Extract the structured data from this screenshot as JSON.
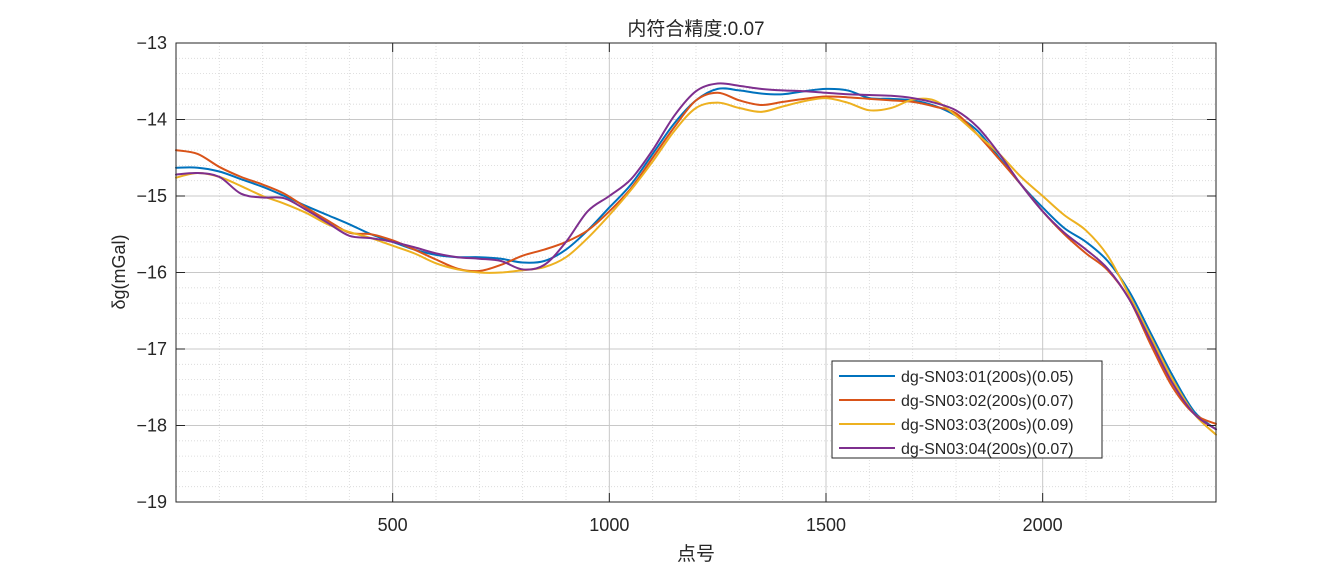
{
  "chart_data": {
    "type": "line",
    "title": "内符合精度:0.07",
    "xlabel": "点号",
    "ylabel": "δg(mGal)",
    "xlim": [
      0,
      2400
    ],
    "ylim": [
      -19,
      -13
    ],
    "xticks": [
      500,
      1000,
      1500,
      2000
    ],
    "yticks": [
      -19,
      -18,
      -17,
      -16,
      -15,
      -14,
      -13
    ],
    "grid": true,
    "minor_grid": true,
    "legend_position": "bottom-right",
    "series": [
      {
        "name": "dg-SN03:01(200s)(0.05)",
        "color": "#0072BD",
        "points": [
          [
            0,
            -14.63
          ],
          [
            50,
            -14.63
          ],
          [
            100,
            -14.68
          ],
          [
            150,
            -14.78
          ],
          [
            200,
            -14.88
          ],
          [
            250,
            -15.0
          ],
          [
            300,
            -15.13
          ],
          [
            350,
            -15.25
          ],
          [
            400,
            -15.37
          ],
          [
            450,
            -15.5
          ],
          [
            500,
            -15.6
          ],
          [
            550,
            -15.7
          ],
          [
            600,
            -15.77
          ],
          [
            650,
            -15.8
          ],
          [
            700,
            -15.8
          ],
          [
            750,
            -15.82
          ],
          [
            800,
            -15.87
          ],
          [
            850,
            -15.85
          ],
          [
            900,
            -15.7
          ],
          [
            950,
            -15.45
          ],
          [
            1000,
            -15.15
          ],
          [
            1050,
            -14.85
          ],
          [
            1100,
            -14.45
          ],
          [
            1150,
            -14.05
          ],
          [
            1200,
            -13.75
          ],
          [
            1250,
            -13.6
          ],
          [
            1300,
            -13.62
          ],
          [
            1350,
            -13.66
          ],
          [
            1400,
            -13.67
          ],
          [
            1450,
            -13.63
          ],
          [
            1500,
            -13.6
          ],
          [
            1550,
            -13.62
          ],
          [
            1600,
            -13.72
          ],
          [
            1650,
            -13.73
          ],
          [
            1700,
            -13.75
          ],
          [
            1750,
            -13.82
          ],
          [
            1800,
            -13.95
          ],
          [
            1850,
            -14.15
          ],
          [
            1900,
            -14.5
          ],
          [
            1950,
            -14.85
          ],
          [
            2000,
            -15.15
          ],
          [
            2050,
            -15.42
          ],
          [
            2100,
            -15.6
          ],
          [
            2150,
            -15.85
          ],
          [
            2200,
            -16.25
          ],
          [
            2250,
            -16.8
          ],
          [
            2300,
            -17.35
          ],
          [
            2350,
            -17.82
          ],
          [
            2400,
            -18.05
          ]
        ]
      },
      {
        "name": "dg-SN03:02(200s)(0.07)",
        "color": "#D95319",
        "points": [
          [
            0,
            -14.4
          ],
          [
            50,
            -14.45
          ],
          [
            100,
            -14.62
          ],
          [
            150,
            -14.75
          ],
          [
            200,
            -14.85
          ],
          [
            250,
            -14.97
          ],
          [
            300,
            -15.15
          ],
          [
            350,
            -15.32
          ],
          [
            400,
            -15.48
          ],
          [
            450,
            -15.5
          ],
          [
            500,
            -15.58
          ],
          [
            550,
            -15.7
          ],
          [
            600,
            -15.83
          ],
          [
            650,
            -15.95
          ],
          [
            700,
            -15.98
          ],
          [
            750,
            -15.9
          ],
          [
            800,
            -15.78
          ],
          [
            850,
            -15.7
          ],
          [
            900,
            -15.6
          ],
          [
            950,
            -15.45
          ],
          [
            1000,
            -15.2
          ],
          [
            1050,
            -14.9
          ],
          [
            1100,
            -14.5
          ],
          [
            1150,
            -14.1
          ],
          [
            1200,
            -13.75
          ],
          [
            1250,
            -13.65
          ],
          [
            1300,
            -13.75
          ],
          [
            1350,
            -13.81
          ],
          [
            1400,
            -13.77
          ],
          [
            1450,
            -13.73
          ],
          [
            1500,
            -13.7
          ],
          [
            1550,
            -13.71
          ],
          [
            1600,
            -13.73
          ],
          [
            1650,
            -13.75
          ],
          [
            1700,
            -13.77
          ],
          [
            1750,
            -13.83
          ],
          [
            1800,
            -13.92
          ],
          [
            1850,
            -14.2
          ],
          [
            1900,
            -14.52
          ],
          [
            1950,
            -14.85
          ],
          [
            2000,
            -15.2
          ],
          [
            2050,
            -15.5
          ],
          [
            2100,
            -15.75
          ],
          [
            2150,
            -15.97
          ],
          [
            2200,
            -16.35
          ],
          [
            2250,
            -16.95
          ],
          [
            2300,
            -17.5
          ],
          [
            2350,
            -17.85
          ],
          [
            2400,
            -17.98
          ]
        ]
      },
      {
        "name": "dg-SN03:03(200s)(0.09)",
        "color": "#EDB120",
        "points": [
          [
            0,
            -14.76
          ],
          [
            50,
            -14.7
          ],
          [
            100,
            -14.75
          ],
          [
            150,
            -14.87
          ],
          [
            200,
            -15.0
          ],
          [
            250,
            -15.1
          ],
          [
            300,
            -15.22
          ],
          [
            350,
            -15.37
          ],
          [
            400,
            -15.47
          ],
          [
            450,
            -15.55
          ],
          [
            500,
            -15.65
          ],
          [
            550,
            -15.75
          ],
          [
            600,
            -15.88
          ],
          [
            650,
            -15.96
          ],
          [
            700,
            -16.0
          ],
          [
            750,
            -16.0
          ],
          [
            800,
            -15.97
          ],
          [
            850,
            -15.93
          ],
          [
            900,
            -15.8
          ],
          [
            950,
            -15.55
          ],
          [
            1000,
            -15.25
          ],
          [
            1050,
            -14.92
          ],
          [
            1100,
            -14.55
          ],
          [
            1150,
            -14.15
          ],
          [
            1200,
            -13.85
          ],
          [
            1250,
            -13.78
          ],
          [
            1300,
            -13.85
          ],
          [
            1350,
            -13.9
          ],
          [
            1400,
            -13.83
          ],
          [
            1450,
            -13.76
          ],
          [
            1500,
            -13.72
          ],
          [
            1550,
            -13.78
          ],
          [
            1600,
            -13.88
          ],
          [
            1650,
            -13.85
          ],
          [
            1700,
            -13.74
          ],
          [
            1750,
            -13.75
          ],
          [
            1800,
            -13.95
          ],
          [
            1850,
            -14.2
          ],
          [
            1900,
            -14.45
          ],
          [
            1950,
            -14.75
          ],
          [
            2000,
            -15.0
          ],
          [
            2050,
            -15.25
          ],
          [
            2100,
            -15.45
          ],
          [
            2150,
            -15.78
          ],
          [
            2200,
            -16.3
          ],
          [
            2250,
            -16.85
          ],
          [
            2300,
            -17.4
          ],
          [
            2350,
            -17.85
          ],
          [
            2400,
            -18.12
          ]
        ]
      },
      {
        "name": "dg-SN03:04(200s)(0.07)",
        "color": "#7E2F8E",
        "points": [
          [
            0,
            -14.72
          ],
          [
            50,
            -14.7
          ],
          [
            100,
            -14.75
          ],
          [
            150,
            -14.97
          ],
          [
            200,
            -15.02
          ],
          [
            250,
            -15.03
          ],
          [
            300,
            -15.18
          ],
          [
            350,
            -15.35
          ],
          [
            400,
            -15.52
          ],
          [
            450,
            -15.55
          ],
          [
            500,
            -15.6
          ],
          [
            550,
            -15.67
          ],
          [
            600,
            -15.75
          ],
          [
            650,
            -15.8
          ],
          [
            700,
            -15.82
          ],
          [
            750,
            -15.85
          ],
          [
            800,
            -15.96
          ],
          [
            850,
            -15.9
          ],
          [
            900,
            -15.6
          ],
          [
            950,
            -15.2
          ],
          [
            1000,
            -15.0
          ],
          [
            1050,
            -14.78
          ],
          [
            1100,
            -14.4
          ],
          [
            1150,
            -13.95
          ],
          [
            1200,
            -13.63
          ],
          [
            1250,
            -13.53
          ],
          [
            1300,
            -13.56
          ],
          [
            1350,
            -13.6
          ],
          [
            1400,
            -13.62
          ],
          [
            1450,
            -13.63
          ],
          [
            1500,
            -13.65
          ],
          [
            1550,
            -13.67
          ],
          [
            1600,
            -13.68
          ],
          [
            1650,
            -13.69
          ],
          [
            1700,
            -13.72
          ],
          [
            1750,
            -13.78
          ],
          [
            1800,
            -13.88
          ],
          [
            1850,
            -14.1
          ],
          [
            1900,
            -14.45
          ],
          [
            1950,
            -14.85
          ],
          [
            2000,
            -15.2
          ],
          [
            2050,
            -15.48
          ],
          [
            2100,
            -15.7
          ],
          [
            2150,
            -15.95
          ],
          [
            2200,
            -16.35
          ],
          [
            2250,
            -16.9
          ],
          [
            2300,
            -17.45
          ],
          [
            2350,
            -17.85
          ],
          [
            2400,
            -18.05
          ]
        ]
      }
    ]
  }
}
